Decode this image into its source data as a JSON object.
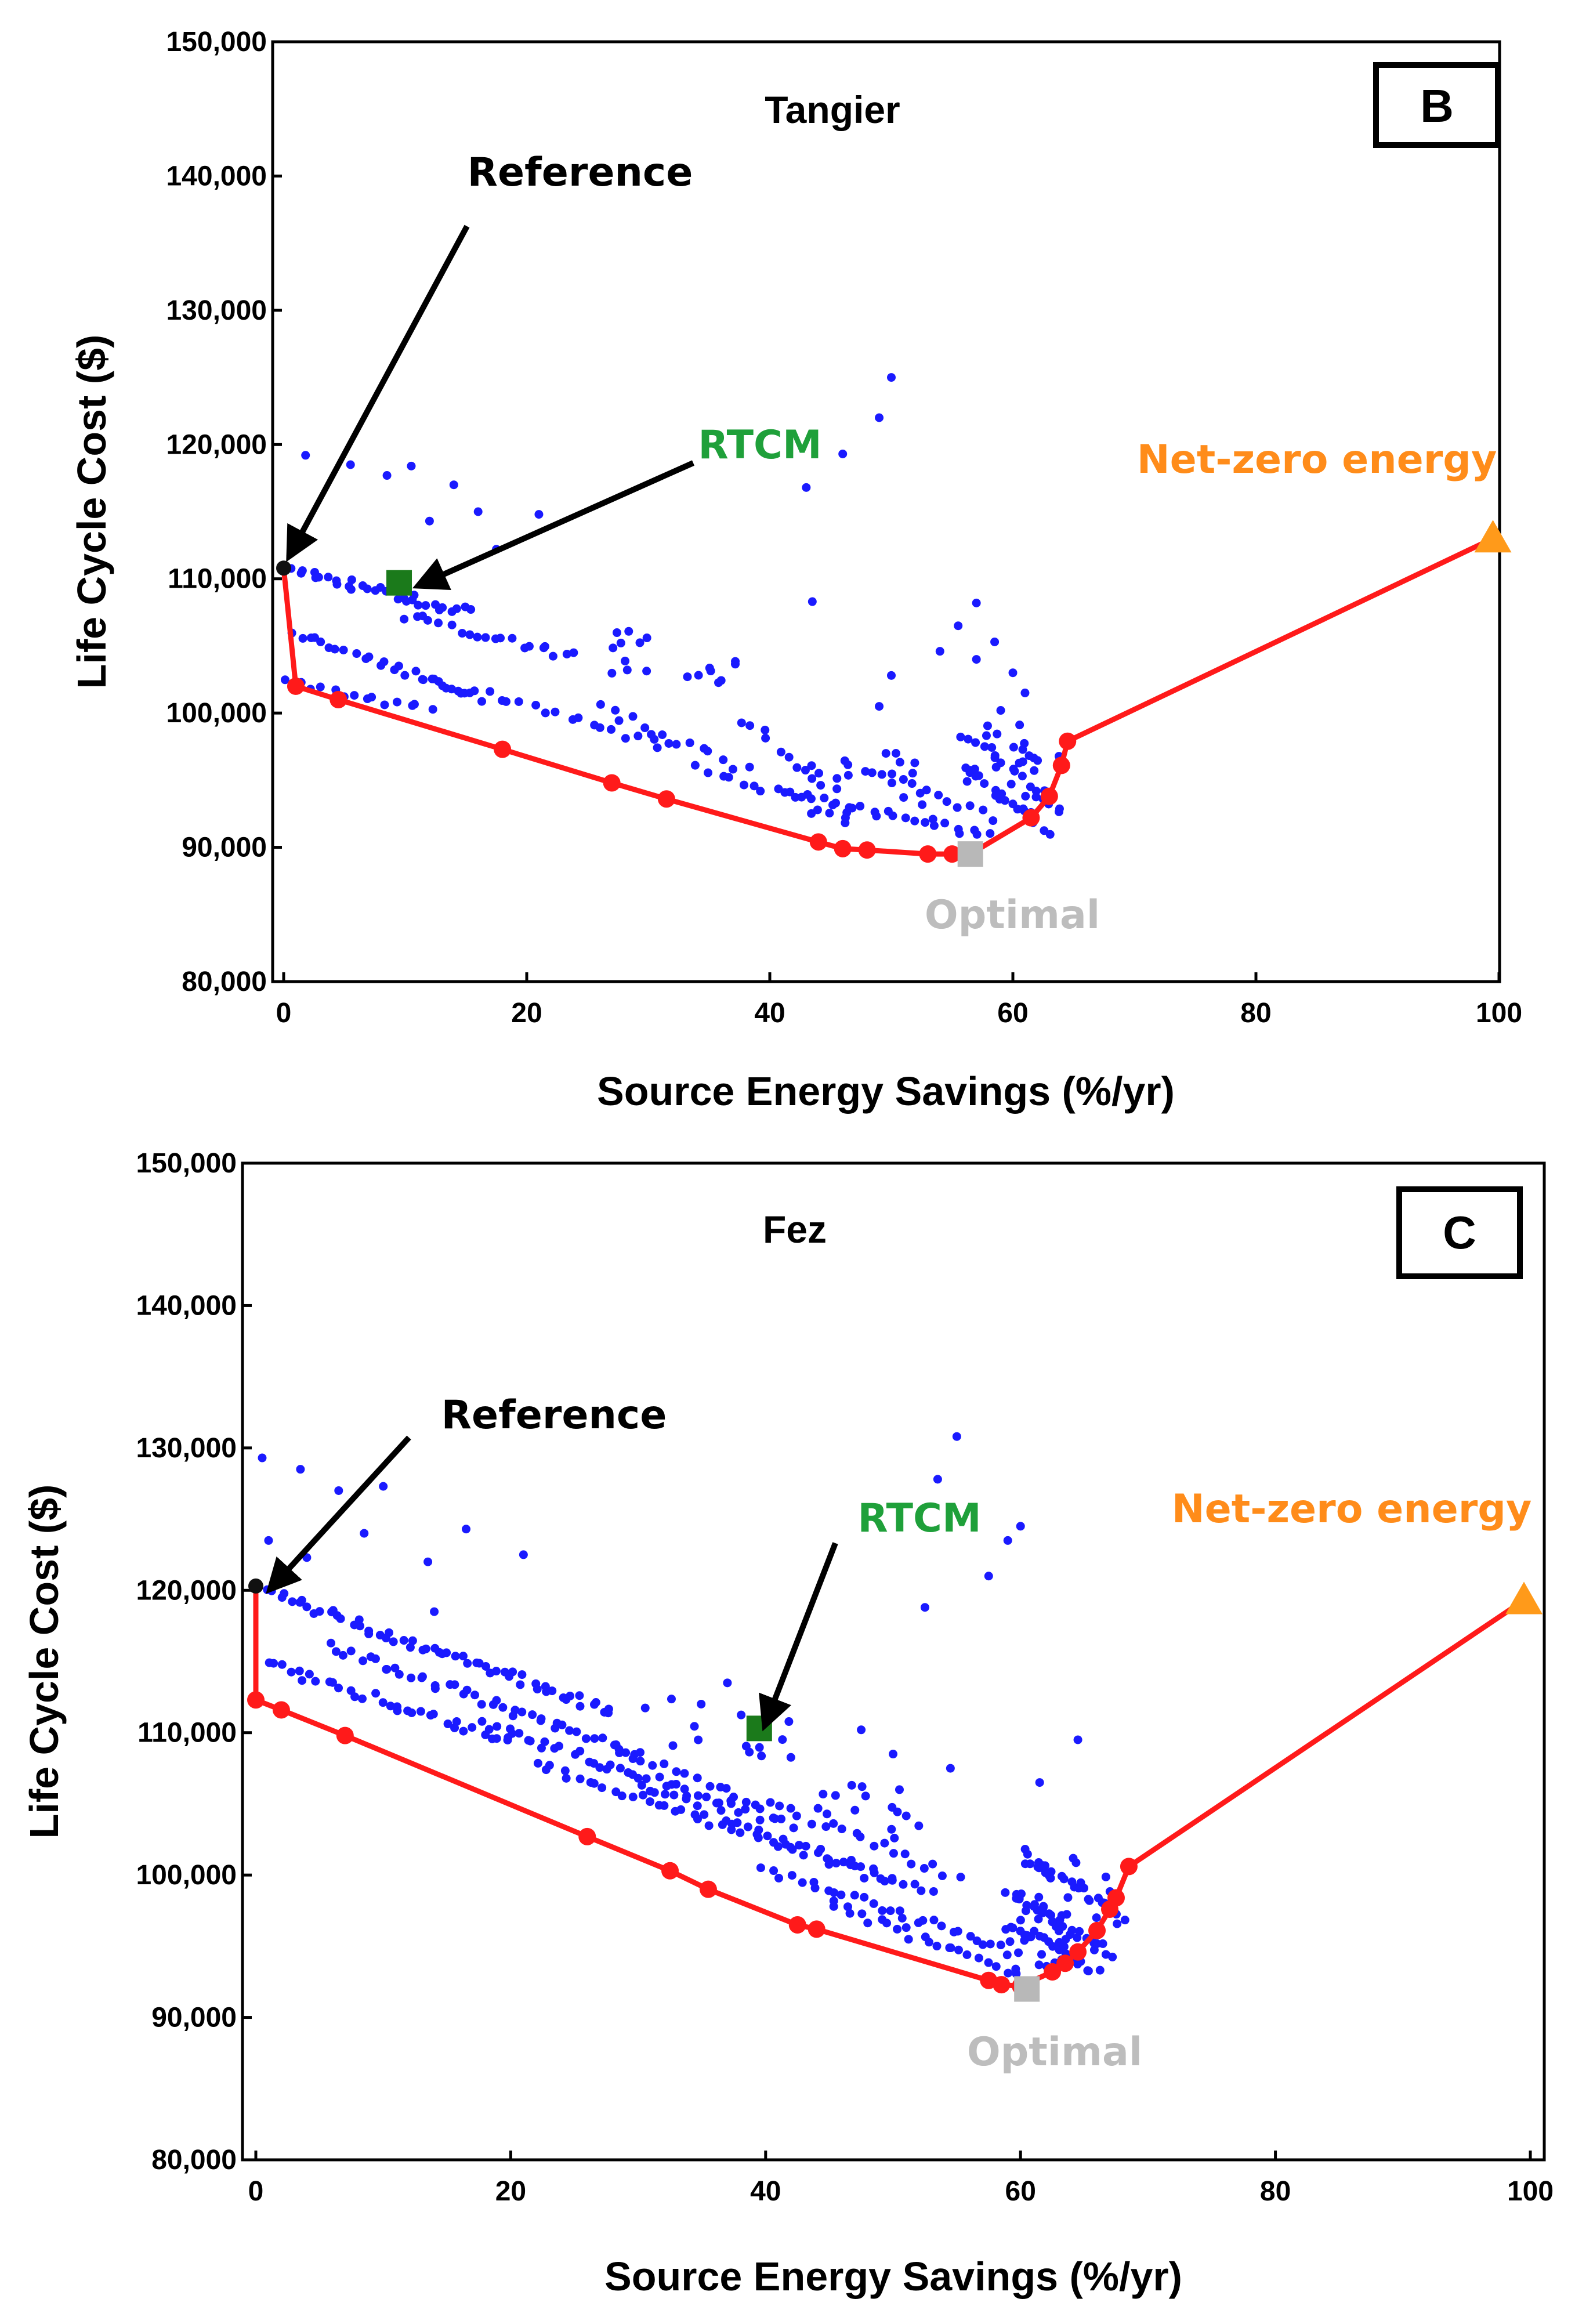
{
  "chart_data": [
    {
      "type": "scatter",
      "panel_label": "B",
      "title": "Tangier",
      "xlabel": "Source Energy Savings (%/yr)",
      "ylabel": "Life Cycle Cost ($)",
      "xlim": [
        0,
        100
      ],
      "ylim": [
        80000,
        150000
      ],
      "x_ticks": [
        0,
        20,
        40,
        60,
        80,
        100
      ],
      "y_ticks": [
        80000,
        90000,
        100000,
        110000,
        120000,
        130000,
        140000,
        150000
      ],
      "x_tick_labels": [
        "0",
        "20",
        "40",
        "60",
        "80",
        "100"
      ],
      "y_tick_labels": [
        "80,000",
        "90,000",
        "100,000",
        "110,000",
        "120,000",
        "130,000",
        "140,000",
        "150,000"
      ],
      "colors": {
        "scatter": "#1a1aff",
        "pareto": "#ff1a1a",
        "rtcm": "#1b7a1b",
        "optimal": "#b8b8b8",
        "net_zero": "#ff9a1a"
      },
      "annotations": {
        "reference": {
          "label": "Reference",
          "x": 0,
          "y": 110800
        },
        "rtcm": {
          "label": "RTCM",
          "x": 9.5,
          "y": 109700
        },
        "optimal": {
          "label": "Optimal",
          "x": 56.5,
          "y": 89500
        },
        "net_zero": {
          "label": "Net-zero energy",
          "x": 99.5,
          "y": 113000
        }
      },
      "pareto": {
        "x": [
          0,
          1,
          4.5,
          18,
          27,
          31.5,
          44,
          46,
          48,
          53,
          55,
          56.5,
          61.5,
          63,
          64,
          64.5,
          99.5
        ],
        "y": [
          110800,
          102000,
          101000,
          97300,
          94800,
          93600,
          90400,
          89900,
          89800,
          89500,
          89500,
          89500,
          92200,
          93800,
          96100,
          97900,
          113000
        ]
      },
      "bands": [
        {
          "x0": 0,
          "x1": 15,
          "y0": 110800,
          "y1": 107500,
          "n": 34
        },
        {
          "x0": 10,
          "x1": 24,
          "y0": 107200,
          "y1": 104200,
          "n": 20
        },
        {
          "x0": 1,
          "x1": 16,
          "y0": 106000,
          "y1": 101200,
          "n": 26
        },
        {
          "x0": 12,
          "x1": 32,
          "y0": 102500,
          "y1": 97500,
          "n": 22
        },
        {
          "x0": 0.5,
          "x1": 12,
          "y0": 102300,
          "y1": 100200,
          "n": 14
        },
        {
          "x0": 26,
          "x1": 38,
          "y0": 100500,
          "y1": 95800,
          "n": 14
        },
        {
          "x0": 34,
          "x1": 46,
          "y0": 96000,
          "y1": 92500,
          "n": 14
        },
        {
          "x0": 38,
          "x1": 44,
          "y0": 99500,
          "y1": 94500,
          "n": 10
        },
        {
          "x0": 42,
          "x1": 58,
          "y0": 94000,
          "y1": 90800,
          "n": 24
        },
        {
          "x0": 46,
          "x1": 58,
          "y0": 96500,
          "y1": 92200,
          "n": 16
        },
        {
          "x0": 56,
          "x1": 64,
          "y0": 98500,
          "y1": 92500,
          "n": 18
        },
        {
          "x0": 56,
          "x1": 63,
          "y0": 96000,
          "y1": 91200,
          "n": 16
        }
      ],
      "clusters": [
        {
          "x0": 27,
          "x1": 30,
          "y0": 102800,
          "y1": 106200,
          "n": 10
        },
        {
          "x0": 33,
          "x1": 38,
          "y0": 101500,
          "y1": 104000,
          "n": 8
        },
        {
          "x0": 43,
          "x1": 47,
          "y0": 91500,
          "y1": 96500,
          "n": 8
        },
        {
          "x0": 49,
          "x1": 53,
          "y0": 93000,
          "y1": 98500,
          "n": 8
        },
        {
          "x0": 56,
          "x1": 61,
          "y0": 92500,
          "y1": 99500,
          "n": 12
        },
        {
          "x0": 60,
          "x1": 64,
          "y0": 92500,
          "y1": 98500,
          "n": 12
        }
      ],
      "outliers": [
        {
          "x": 1.8,
          "y": 119200
        },
        {
          "x": 5.5,
          "y": 118500
        },
        {
          "x": 8.5,
          "y": 117700
        },
        {
          "x": 10.5,
          "y": 118400
        },
        {
          "x": 12,
          "y": 114300
        },
        {
          "x": 14,
          "y": 117000
        },
        {
          "x": 16,
          "y": 115000
        },
        {
          "x": 17.5,
          "y": 112200
        },
        {
          "x": 21,
          "y": 114800
        },
        {
          "x": 50,
          "y": 125000
        },
        {
          "x": 49,
          "y": 122000
        },
        {
          "x": 46,
          "y": 119300
        },
        {
          "x": 43,
          "y": 116800
        },
        {
          "x": 43.5,
          "y": 108300
        },
        {
          "x": 54,
          "y": 104600
        },
        {
          "x": 55.5,
          "y": 106500
        },
        {
          "x": 57,
          "y": 108200
        },
        {
          "x": 57,
          "y": 104000
        },
        {
          "x": 58.5,
          "y": 105300
        },
        {
          "x": 60,
          "y": 103000
        },
        {
          "x": 50,
          "y": 102800
        },
        {
          "x": 49,
          "y": 100500
        },
        {
          "x": 59,
          "y": 100200
        },
        {
          "x": 61,
          "y": 101500
        }
      ]
    },
    {
      "type": "scatter",
      "panel_label": "C",
      "title": "Fez",
      "xlabel": "Source Energy Savings (%/yr)",
      "ylabel": "Life Cycle Cost ($)",
      "xlim": [
        0,
        100
      ],
      "ylim": [
        80000,
        150000
      ],
      "x_ticks": [
        0,
        20,
        40,
        60,
        80,
        100
      ],
      "y_ticks": [
        80000,
        90000,
        100000,
        110000,
        120000,
        130000,
        140000,
        150000
      ],
      "x_tick_labels": [
        "0",
        "20",
        "40",
        "60",
        "80",
        "100"
      ],
      "y_tick_labels": [
        "80,000",
        "90,000",
        "100,000",
        "110,000",
        "120,000",
        "130,000",
        "140,000",
        "150,000"
      ],
      "colors": {
        "scatter": "#1a1aff",
        "pareto": "#ff1a1a",
        "rtcm": "#1b7a1b",
        "optimal": "#b8b8b8",
        "net_zero": "#ff9a1a"
      },
      "annotations": {
        "reference": {
          "label": "Reference",
          "x": 0,
          "y": 120300
        },
        "rtcm": {
          "label": "RTCM",
          "x": 39.5,
          "y": 110300
        },
        "optimal": {
          "label": "Optimal",
          "x": 60.5,
          "y": 92000
        },
        "net_zero": {
          "label": "Net-zero energy",
          "x": 99.5,
          "y": 119300
        }
      },
      "pareto": {
        "x": [
          0,
          0,
          2,
          7,
          26,
          32.5,
          35.5,
          42.5,
          44,
          57.5,
          58.5,
          60,
          62.5,
          63.5,
          64.5,
          66,
          67,
          67.5,
          68.5,
          99.5
        ],
        "y": [
          120300,
          112300,
          111600,
          109800,
          102700,
          100300,
          99000,
          96500,
          96200,
          92600,
          92300,
          92200,
          93200,
          93800,
          94600,
          96100,
          97600,
          98400,
          100600,
          119300
        ]
      },
      "bands": [
        {
          "x0": 1,
          "x1": 28,
          "y0": 119800,
          "y1": 111500,
          "n": 60
        },
        {
          "x0": 6,
          "x1": 30,
          "y0": 116000,
          "y1": 108500,
          "n": 44
        },
        {
          "x0": 1,
          "x1": 20,
          "y0": 114800,
          "y1": 109300,
          "n": 34
        },
        {
          "x0": 18,
          "x1": 42,
          "y0": 110500,
          "y1": 103500,
          "n": 44
        },
        {
          "x0": 22,
          "x1": 50,
          "y0": 107800,
          "y1": 99500,
          "n": 42
        },
        {
          "x0": 28,
          "x1": 55,
          "y0": 109000,
          "y1": 100000,
          "n": 34
        },
        {
          "x0": 30,
          "x1": 53,
          "y0": 106500,
          "y1": 98500,
          "n": 30
        },
        {
          "x0": 40,
          "x1": 60,
          "y0": 100500,
          "y1": 94500,
          "n": 30
        },
        {
          "x0": 45,
          "x1": 60,
          "y0": 98000,
          "y1": 93000,
          "n": 24
        },
        {
          "x0": 60,
          "x1": 68,
          "y0": 101500,
          "y1": 97000,
          "n": 24
        },
        {
          "x0": 59,
          "x1": 67,
          "y0": 99000,
          "y1": 94500,
          "n": 24
        },
        {
          "x0": 59,
          "x1": 66,
          "y0": 96500,
          "y1": 93300,
          "n": 22
        }
      ],
      "clusters": [
        {
          "x0": 59,
          "x1": 64,
          "y0": 93500,
          "y1": 100000,
          "n": 20
        },
        {
          "x0": 60,
          "x1": 68,
          "y0": 95000,
          "y1": 102000,
          "n": 20
        },
        {
          "x0": 44,
          "x1": 48,
          "y0": 104000,
          "y1": 106500,
          "n": 8
        },
        {
          "x0": 49,
          "x1": 53,
          "y0": 102500,
          "y1": 105000,
          "n": 6
        },
        {
          "x0": 37,
          "x1": 42,
          "y0": 108000,
          "y1": 112000,
          "n": 8
        },
        {
          "x0": 30,
          "x1": 36,
          "y0": 109000,
          "y1": 112500,
          "n": 6
        }
      ],
      "outliers": [
        {
          "x": 0.5,
          "y": 129300
        },
        {
          "x": 3.5,
          "y": 128500
        },
        {
          "x": 6.5,
          "y": 127000
        },
        {
          "x": 10,
          "y": 127300
        },
        {
          "x": 1,
          "y": 123500
        },
        {
          "x": 4,
          "y": 122300
        },
        {
          "x": 8.5,
          "y": 124000
        },
        {
          "x": 13.5,
          "y": 122000
        },
        {
          "x": 16.5,
          "y": 124300
        },
        {
          "x": 21,
          "y": 122500
        },
        {
          "x": 14,
          "y": 118500
        },
        {
          "x": 37,
          "y": 113500
        },
        {
          "x": 55,
          "y": 130800
        },
        {
          "x": 53.5,
          "y": 127800
        },
        {
          "x": 52.5,
          "y": 118800
        },
        {
          "x": 57.5,
          "y": 121000
        },
        {
          "x": 59,
          "y": 123500
        },
        {
          "x": 60,
          "y": 124500
        },
        {
          "x": 47.5,
          "y": 110200
        },
        {
          "x": 50,
          "y": 108500
        },
        {
          "x": 54.5,
          "y": 107500
        },
        {
          "x": 50.5,
          "y": 106000
        },
        {
          "x": 64.5,
          "y": 109500
        },
        {
          "x": 61.5,
          "y": 106500
        }
      ]
    }
  ]
}
